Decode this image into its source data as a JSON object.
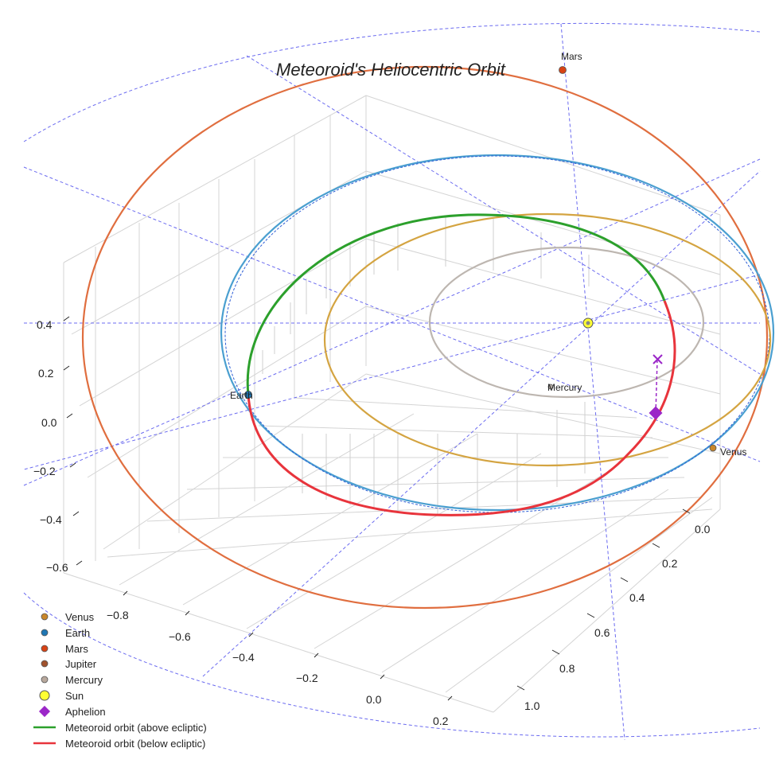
{
  "chart_data": {
    "type": "line",
    "title": "Meteoroid's Heliocentric Orbit",
    "projection": "3d",
    "axis_ticks": {
      "z": [
        "0.4",
        "0.2",
        "0.0",
        "−0.2",
        "−0.4",
        "−0.6"
      ],
      "x": [
        "−0.8",
        "−0.6",
        "−0.4",
        "−0.2",
        "0.0",
        "0.2"
      ],
      "y": [
        "0.0",
        "0.2",
        "0.4",
        "0.6",
        "0.8",
        "1.0"
      ]
    },
    "bodies": [
      {
        "name": "Venus",
        "label": "Venus",
        "color": "#c9862a"
      },
      {
        "name": "Earth",
        "label": "Earth",
        "color": "#1f77b4"
      },
      {
        "name": "Mars",
        "label": "Mars",
        "color": "#d84315"
      },
      {
        "name": "Mercury",
        "label": "Mercury",
        "color": "#b0a8a0"
      },
      {
        "name": "Sun",
        "label": "",
        "color": "#ffff33"
      }
    ],
    "orbits": [
      {
        "name": "Mercury orbit",
        "color": "#bdb6b0",
        "semi_major_au": 0.387
      },
      {
        "name": "Venus orbit",
        "color": "#d4a441",
        "semi_major_au": 0.723
      },
      {
        "name": "Earth orbit",
        "color": "#4a9fd0",
        "semi_major_au": 1.0
      },
      {
        "name": "Mars orbit",
        "color": "#e06e3f",
        "semi_major_au": 1.524
      }
    ],
    "series": [
      {
        "name": "Meteoroid orbit (above ecliptic)",
        "color": "#2ca02c"
      },
      {
        "name": "Meteoroid orbit (below ecliptic)",
        "color": "#e8343c"
      }
    ],
    "aphelion": {
      "name": "Aphelion",
      "color": "#9b27c8"
    },
    "legend": {
      "placement": "bottom-left",
      "entries": [
        {
          "label": "Venus",
          "kind": "dot",
          "color": "#c9862a"
        },
        {
          "label": "Earth",
          "kind": "dot",
          "color": "#1f77b4"
        },
        {
          "label": "Mars",
          "kind": "dot",
          "color": "#d84315"
        },
        {
          "label": "Jupiter",
          "kind": "dot",
          "color": "#a0522d"
        },
        {
          "label": "Mercury",
          "kind": "dot",
          "color": "#b8a89c"
        },
        {
          "label": "Sun",
          "kind": "sun",
          "color": "#ffff33"
        },
        {
          "label": "Aphelion",
          "kind": "diamond",
          "color": "#9b27c8"
        },
        {
          "label": "Meteoroid orbit (above ecliptic)",
          "kind": "line",
          "color": "#2ca02c"
        },
        {
          "label": "Meteoroid orbit (below ecliptic)",
          "kind": "line",
          "color": "#e8343c"
        }
      ]
    }
  }
}
